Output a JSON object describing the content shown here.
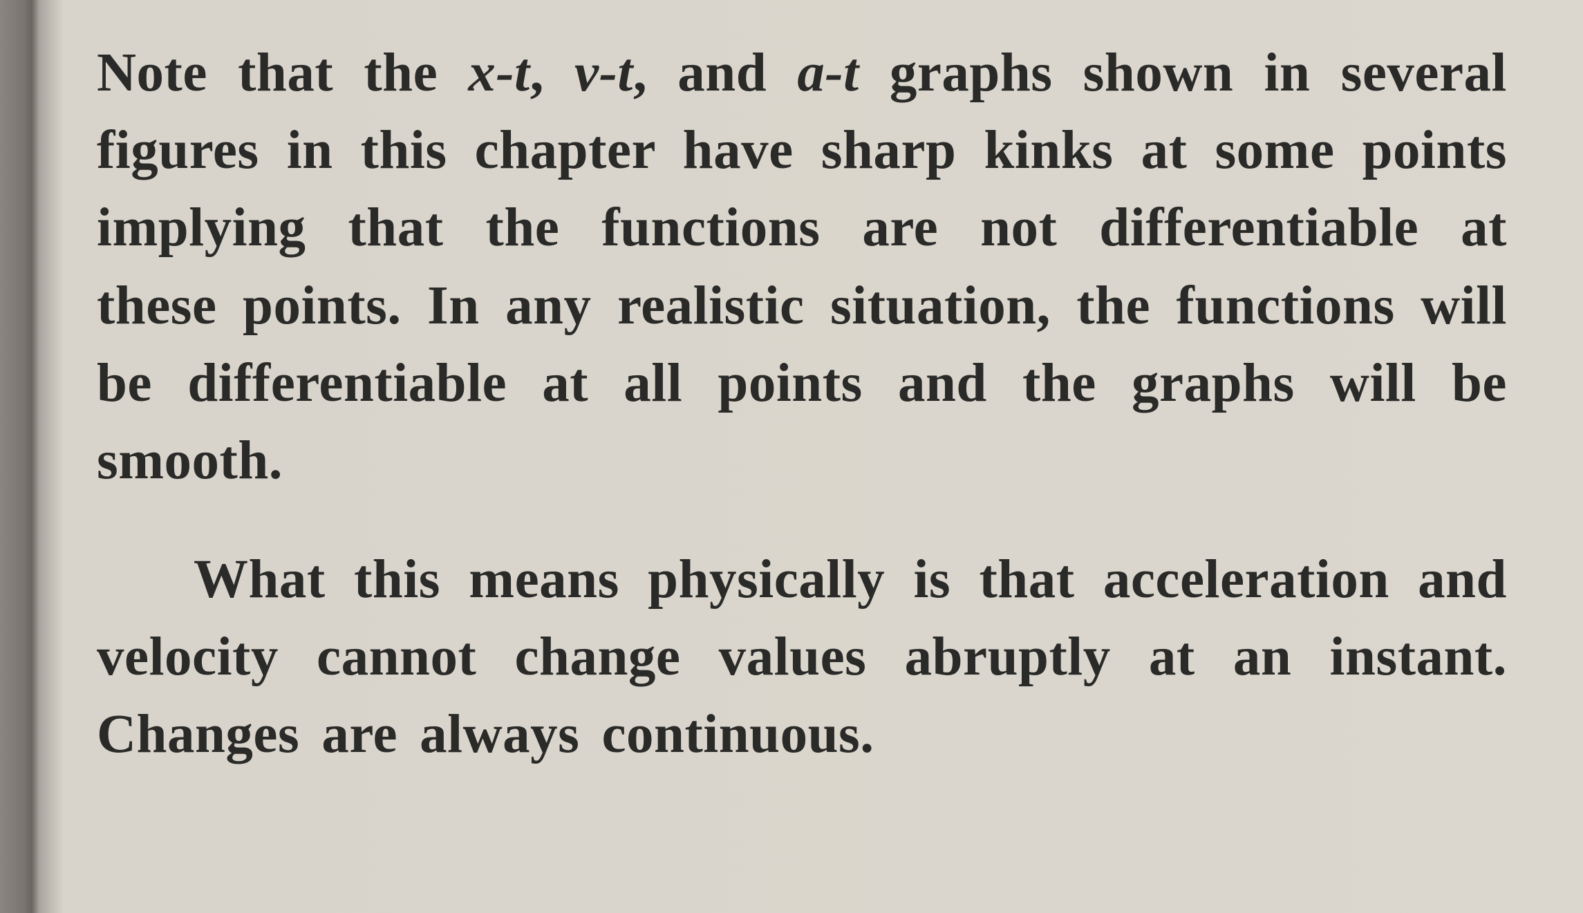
{
  "document": {
    "background_color": "#dbd7ce",
    "text_color": "#2a2a28",
    "font_family": "Georgia, serif",
    "font_size_pt": 59,
    "font_weight": 700,
    "line_height": 1.42,
    "text_align": "justify",
    "letter_spacing": 0.5,
    "paragraphs": [
      {
        "prefix": "Note that the ",
        "var1": "x-t",
        "mid1": ", ",
        "var2": "v-t",
        "mid2": ", and ",
        "var3": "a-t",
        "suffix": " graphs shown in several figures in this chapter have sharp kinks at some points implying that the functions are not differentiable at these points. In any realistic situation, the functions will be differentiable at all points and the graphs will be smooth."
      },
      {
        "text": "What this means physically is that acceleration and velocity cannot change values abruptly at an instant. Changes are always continuous."
      }
    ],
    "spine_shadow_colors": [
      "#8a8580",
      "#7a7570",
      "#6a6560",
      "#aaa59e"
    ]
  }
}
